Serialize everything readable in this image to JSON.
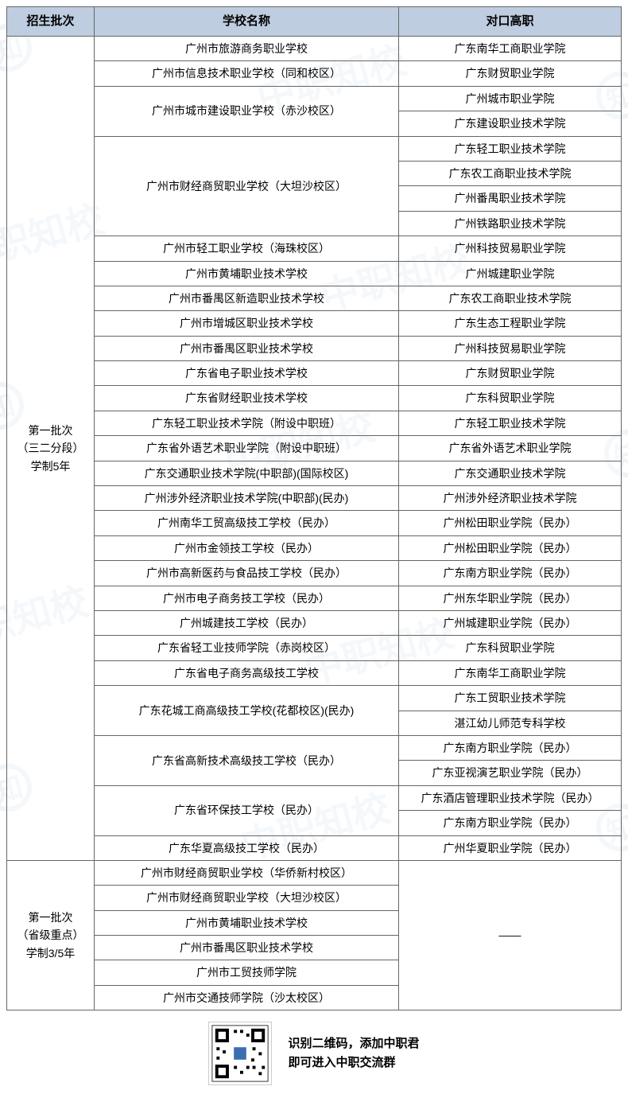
{
  "header": {
    "col1": "招生批次",
    "col2": "学校名称",
    "col3": "对口高职"
  },
  "batch1": {
    "label": "第一批次\n（三二分段）\n学制5年",
    "rows": [
      {
        "school": "广州市旅游商务职业学校",
        "targets": [
          "广东南华工商职业学院"
        ]
      },
      {
        "school": "广州市信息技术职业学校（同和校区）",
        "targets": [
          "广东财贸职业学院"
        ]
      },
      {
        "school": "广州市城市建设职业学校（赤沙校区）",
        "targets": [
          "广州城市职业学院",
          "广东建设职业技术学院"
        ]
      },
      {
        "school": "广州市财经商贸职业学校（大坦沙校区）",
        "targets": [
          "广东轻工职业技术学院",
          "广东农工商职业技术学院",
          "广州番禺职业技术学院",
          "广州铁路职业技术学院"
        ]
      },
      {
        "school": "广州市轻工职业学校（海珠校区）",
        "targets": [
          "广州科技贸易职业学院"
        ]
      },
      {
        "school": "广州市黄埔职业技术学校",
        "targets": [
          "广州城建职业学院"
        ]
      },
      {
        "school": "广州市番禺区新造职业技术学校",
        "targets": [
          "广东农工商职业技术学院"
        ]
      },
      {
        "school": "广州市增城区职业技术学校",
        "targets": [
          "广东生态工程职业学院"
        ]
      },
      {
        "school": "广州市番禺区职业技术学校",
        "targets": [
          "广州科技贸易职业学院"
        ]
      },
      {
        "school": "广东省电子职业技术学校",
        "targets": [
          "广东财贸职业学院"
        ]
      },
      {
        "school": "广东省财经职业技术学校",
        "targets": [
          "广东科贸职业学院"
        ]
      },
      {
        "school": "广东轻工职业技术学院（附设中职班）",
        "targets": [
          "广东轻工职业技术学院"
        ]
      },
      {
        "school": "广东省外语艺术职业学院（附设中职班）",
        "targets": [
          "广东省外语艺术职业学院"
        ]
      },
      {
        "school": "广东交通职业技术学院(中职部)(国际校区)",
        "targets": [
          "广东交通职业技术学院"
        ]
      },
      {
        "school": "广州涉外经济职业技术学院(中职部)(民办)",
        "targets": [
          "广州涉外经济职业技术学院"
        ]
      },
      {
        "school": "广州南华工贸高级技工学校（民办）",
        "targets": [
          "广州松田职业学院（民办）"
        ]
      },
      {
        "school": "广州市金领技工学校（民办）",
        "targets": [
          "广州松田职业学院（民办）"
        ]
      },
      {
        "school": "广州市高新医药与食品技工学校（民办）",
        "targets": [
          "广东南方职业学院（民办）"
        ]
      },
      {
        "school": "广州市电子商务技工学校（民办）",
        "targets": [
          "广州东华职业学院（民办）"
        ]
      },
      {
        "school": "广州城建技工学校（民办）",
        "targets": [
          "广州城建职业学院（民办）"
        ]
      },
      {
        "school": "广东省轻工业技师学院（赤岗校区）",
        "targets": [
          "广东科贸职业学院"
        ]
      },
      {
        "school": "广东省电子商务高级技工学校",
        "targets": [
          "广东南华工商职业学院"
        ]
      },
      {
        "school": "广东花城工商高级技工学校(花都校区)(民办)",
        "targets": [
          "广东工贸职业技术学院",
          "湛江幼儿师范专科学校"
        ]
      },
      {
        "school": "广东省高新技术高级技工学校（民办）",
        "targets": [
          "广东南方职业学院（民办）",
          "广东亚视演艺职业学院（民办）"
        ]
      },
      {
        "school": "广东省环保技工学校（民办）",
        "targets": [
          "广东酒店管理职业技术学院（民办）",
          "广东南方职业学院（民办）"
        ]
      },
      {
        "school": "广东华夏高级技工学校（民办）",
        "targets": [
          "广州华夏职业学院（民办）"
        ]
      }
    ]
  },
  "batch2": {
    "label": "第一批次\n（省级重点）\n学制3/5年",
    "target": "——",
    "schools": [
      "广州市财经商贸职业学校（华侨新村校区）",
      "广州市财经商贸职业学校（大坦沙校区）",
      "广州市黄埔职业技术学校",
      "广州市番禺区职业技术学校",
      "广州市工贸技师学院",
      "广州市交通技师学院（沙太校区）"
    ]
  },
  "footer": {
    "line1": "识别二维码，添加中职君",
    "line2": "即可进入中职交流群"
  },
  "watermark": "中职知校",
  "colors": {
    "header_bg": "#bfcde0",
    "border": "#666666",
    "wm": "#3b6db0"
  }
}
